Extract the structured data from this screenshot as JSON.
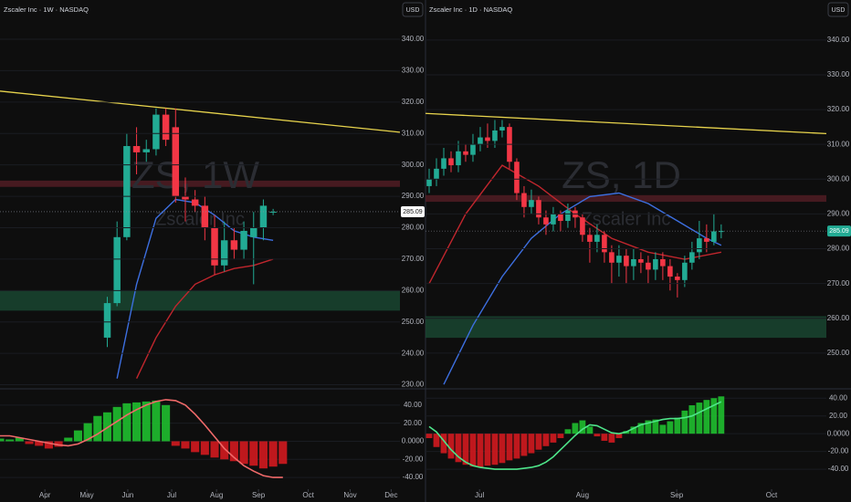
{
  "chart_data": [
    {
      "type": "candlestick",
      "title": "Zscaler Inc · 1W · NASDAQ",
      "currency": "USD",
      "watermark": "ZS, 1W",
      "watermark_subtitle": "Zscaler Inc",
      "x": [
        11,
        12,
        13,
        14,
        15,
        16,
        17,
        18,
        19,
        20,
        21,
        22,
        23,
        24,
        25,
        26,
        27,
        28
      ],
      "open": [
        245,
        256,
        277,
        306,
        304,
        305,
        316,
        312,
        290,
        289,
        287,
        280,
        268,
        276,
        273,
        277,
        280,
        285
      ],
      "high": [
        258,
        282,
        310,
        312,
        308,
        318,
        318,
        318,
        296,
        292,
        290,
        284,
        282,
        280,
        282,
        285,
        289,
        286
      ],
      "low": [
        242,
        255,
        276,
        297,
        301,
        303,
        306,
        288,
        282,
        285,
        276,
        265,
        266,
        270,
        270,
        262,
        276,
        284
      ],
      "close": [
        256,
        277,
        306,
        304,
        305,
        316,
        308,
        290,
        289,
        287,
        280,
        268,
        276,
        273,
        279,
        280,
        287,
        285.09
      ],
      "up_color": "#22ab94",
      "down_color": "#f23645",
      "xlim": [
        0,
        41
      ],
      "ylim": [
        229,
        352.5
      ],
      "yticks": [
        {
          "value": 340,
          "label": "340.00"
        },
        {
          "value": 330,
          "label": "330.00"
        },
        {
          "value": 320,
          "label": "320.00"
        },
        {
          "value": 310,
          "label": "310.00"
        },
        {
          "value": 300,
          "label": "300.00"
        },
        {
          "value": 290,
          "label": "290.00"
        },
        {
          "value": 280,
          "label": "280.00"
        },
        {
          "value": 270,
          "label": "270.00"
        },
        {
          "value": 260,
          "label": "260.00"
        },
        {
          "value": 250,
          "label": "250.00"
        },
        {
          "value": 240,
          "label": "240.00"
        },
        {
          "value": 230,
          "label": "230.00"
        }
      ],
      "last_price": 285.09,
      "last_price_color": "#ffffff",
      "trendline": {
        "x": [
          0,
          41
        ],
        "y": [
          323.5,
          310.4
        ],
        "color": "#e8d44d"
      },
      "zones": [
        {
          "from": 253.6,
          "to": 260,
          "color": "#1b4d36"
        },
        {
          "from": 293,
          "to": 295,
          "color": "#5a1f27"
        }
      ],
      "lines": [
        {
          "color": "#3d6fe0",
          "x": [
            12,
            14,
            16,
            18,
            20,
            22,
            24,
            26,
            28
          ],
          "values": [
            232,
            262,
            283,
            289,
            288,
            284,
            279,
            277,
            276
          ]
        },
        {
          "color": "#c0262d",
          "x": [
            14,
            16,
            18,
            20,
            22,
            24,
            26,
            28
          ],
          "values": [
            232,
            245,
            255,
            262,
            265,
            267,
            268,
            270
          ]
        }
      ]
    },
    {
      "type": "oscillator",
      "x": [
        0,
        1,
        2,
        3,
        4,
        5,
        6,
        7,
        8,
        9,
        10,
        11,
        12,
        13,
        14,
        15,
        16,
        17,
        18,
        19,
        20,
        21,
        22,
        23,
        24,
        25,
        26,
        27,
        28,
        29
      ],
      "values": [
        3,
        2,
        4,
        -3,
        -5,
        -8,
        -6,
        4,
        12,
        20,
        28,
        32,
        38,
        42,
        43,
        44,
        45,
        40,
        -5,
        -8,
        -12,
        -15,
        -18,
        -20,
        -22,
        -25,
        -27,
        -30,
        -28,
        -25
      ],
      "line": {
        "color": "#f06a6a",
        "values": [
          6,
          6,
          4,
          2,
          0,
          -2,
          -4,
          -5,
          -3,
          2,
          8,
          15,
          22,
          29,
          35,
          40,
          44,
          46,
          45,
          40,
          30,
          18,
          5,
          -8,
          -18,
          -27,
          -33,
          -38,
          -40,
          -40
        ]
      },
      "positive_color": "#1fbf2f",
      "negative_color": "#d3191f",
      "xlim": [
        0,
        41
      ],
      "ylim": [
        -52,
        57
      ],
      "yticks": [
        {
          "value": 40,
          "label": "40.00"
        },
        {
          "value": 20,
          "label": "20.00"
        },
        {
          "value": 0,
          "label": "0.0000"
        },
        {
          "value": -20,
          "label": "-20.00"
        },
        {
          "value": -40,
          "label": "-40.00"
        }
      ],
      "xticks": [
        {
          "value": 4.6,
          "label": "Apr"
        },
        {
          "value": 8.9,
          "label": "May"
        },
        {
          "value": 13.1,
          "label": "Jun"
        },
        {
          "value": 17.6,
          "label": "Jul"
        },
        {
          "value": 22.2,
          "label": "Aug"
        },
        {
          "value": 26.5,
          "label": "Sep"
        },
        {
          "value": 31.6,
          "label": "Oct"
        },
        {
          "value": 35.9,
          "label": "Nov"
        },
        {
          "value": 40.1,
          "label": "Dec"
        }
      ]
    },
    {
      "type": "candlestick",
      "title": "Zscaler Inc · 1D · NASDAQ",
      "currency": "USD",
      "watermark": "ZS, 1D",
      "watermark_subtitle": "Zscaler Inc",
      "x": [
        0,
        1,
        2,
        3,
        4,
        5,
        6,
        7,
        8,
        9,
        10,
        11,
        12,
        13,
        14,
        15,
        16,
        17,
        18,
        19,
        20,
        21,
        22,
        23,
        24,
        25,
        26,
        27,
        28,
        29,
        30,
        31,
        32,
        33,
        34,
        35,
        36,
        37,
        38,
        39,
        40
      ],
      "open": [
        298,
        300,
        303,
        306,
        304,
        308,
        307,
        310,
        312,
        311,
        314,
        315,
        305,
        296,
        292,
        294,
        289,
        287,
        290,
        288,
        291,
        289,
        284,
        282,
        284,
        279,
        276,
        278,
        275,
        277,
        276,
        274,
        277,
        275,
        272,
        271,
        276,
        279,
        283,
        282,
        285
      ],
      "high": [
        303,
        306,
        309,
        308,
        311,
        310,
        313,
        315,
        316,
        317,
        317,
        316,
        306,
        298,
        297,
        295,
        291,
        292,
        291,
        293,
        292,
        290,
        286,
        287,
        285,
        281,
        281,
        280,
        280,
        279,
        278,
        279,
        279,
        277,
        273,
        278,
        282,
        288,
        287,
        290,
        287
      ],
      "low": [
        296,
        298,
        301,
        302,
        302,
        305,
        305,
        308,
        309,
        309,
        312,
        303,
        294,
        289,
        290,
        287,
        284,
        285,
        285,
        286,
        286,
        282,
        276,
        279,
        276,
        270,
        272,
        270,
        271,
        273,
        270,
        271,
        271,
        268,
        266,
        269,
        274,
        277,
        279,
        281,
        283
      ],
      "close": [
        300,
        303,
        306,
        304,
        308,
        307,
        310,
        312,
        311,
        314,
        315,
        305,
        296,
        292,
        294,
        289,
        287,
        290,
        288,
        291,
        289,
        284,
        282,
        284,
        279,
        276,
        278,
        275,
        277,
        276,
        274,
        277,
        275,
        272,
        271,
        276,
        279,
        283,
        282,
        285,
        285.09
      ],
      "up_color": "#22ab94",
      "down_color": "#f23645",
      "xlim": [
        -0.5,
        54.4
      ],
      "ylim": [
        240,
        351.5
      ],
      "yticks": [
        {
          "value": 340,
          "label": "340.00"
        },
        {
          "value": 330,
          "label": "330.00"
        },
        {
          "value": 320,
          "label": "320.00"
        },
        {
          "value": 310,
          "label": "310.00"
        },
        {
          "value": 300,
          "label": "300.00"
        },
        {
          "value": 290,
          "label": "290.00"
        },
        {
          "value": 280,
          "label": "280.00"
        },
        {
          "value": 270,
          "label": "270.00"
        },
        {
          "value": 260,
          "label": "260.00"
        },
        {
          "value": 250,
          "label": "250.00"
        }
      ],
      "last_price": 285.09,
      "last_price_color": "#22ab94",
      "trendline": {
        "x": [
          -0.5,
          54.4
        ],
        "y": [
          318.9,
          313.1
        ],
        "color": "#e8d44d"
      },
      "zones": [
        {
          "from": 254.4,
          "to": 260.6,
          "color": "#1b4d36"
        },
        {
          "from": 293.5,
          "to": 295.4,
          "color": "#5a1f27"
        }
      ],
      "lines": [
        {
          "color": "#3d6fe0",
          "x": [
            2,
            6,
            10,
            14,
            18,
            22,
            26,
            30,
            34,
            38,
            40
          ],
          "values": [
            241,
            258,
            272,
            283,
            290,
            295,
            296,
            293,
            288,
            283,
            281
          ]
        },
        {
          "color": "#c0262d",
          "x": [
            0,
            5,
            10,
            15,
            20,
            25,
            30,
            35,
            40
          ],
          "values": [
            270,
            290,
            304,
            298,
            290,
            283,
            279,
            277,
            279
          ]
        }
      ]
    },
    {
      "type": "oscillator",
      "x": [
        0,
        1,
        2,
        3,
        4,
        5,
        6,
        7,
        8,
        9,
        10,
        11,
        12,
        13,
        14,
        15,
        16,
        17,
        18,
        19,
        20,
        21,
        22,
        23,
        24,
        25,
        26,
        27,
        28,
        29,
        30,
        31,
        32,
        33,
        34,
        35,
        36,
        37,
        38,
        39,
        40
      ],
      "values": [
        -5,
        -15,
        -22,
        -28,
        -32,
        -35,
        -37,
        -38,
        -36,
        -35,
        -33,
        -30,
        -28,
        -25,
        -22,
        -18,
        -14,
        -10,
        -5,
        5,
        12,
        15,
        8,
        -3,
        -8,
        -10,
        -5,
        3,
        8,
        12,
        15,
        16,
        10,
        14,
        18,
        26,
        32,
        35,
        38,
        40,
        42
      ],
      "line": {
        "color": "#4ee58a",
        "values": [
          8,
          2,
          -8,
          -18,
          -26,
          -32,
          -36,
          -38,
          -39,
          -40,
          -40,
          -40,
          -40,
          -39,
          -38,
          -36,
          -32,
          -26,
          -18,
          -10,
          -2,
          5,
          10,
          9,
          5,
          1,
          0,
          2,
          6,
          10,
          12,
          14,
          16,
          17,
          17,
          18,
          20,
          24,
          28,
          32,
          36
        ]
      },
      "positive_color": "#1fbf2f",
      "negative_color": "#d3191f",
      "xlim": [
        -0.5,
        54.4
      ],
      "ylim": [
        -61.5,
        49.5
      ],
      "yticks": [
        {
          "value": 40,
          "label": "40.00"
        },
        {
          "value": 20,
          "label": "20.00"
        },
        {
          "value": 0,
          "label": "0.0000"
        },
        {
          "value": -20,
          "label": "-20.00"
        },
        {
          "value": -40,
          "label": "-40.00"
        }
      ],
      "xticks": [
        {
          "value": 6.9,
          "label": "Jul"
        },
        {
          "value": 21,
          "label": "Aug"
        },
        {
          "value": 33.9,
          "label": "Sep"
        },
        {
          "value": 46.9,
          "label": "Oct"
        }
      ]
    }
  ]
}
